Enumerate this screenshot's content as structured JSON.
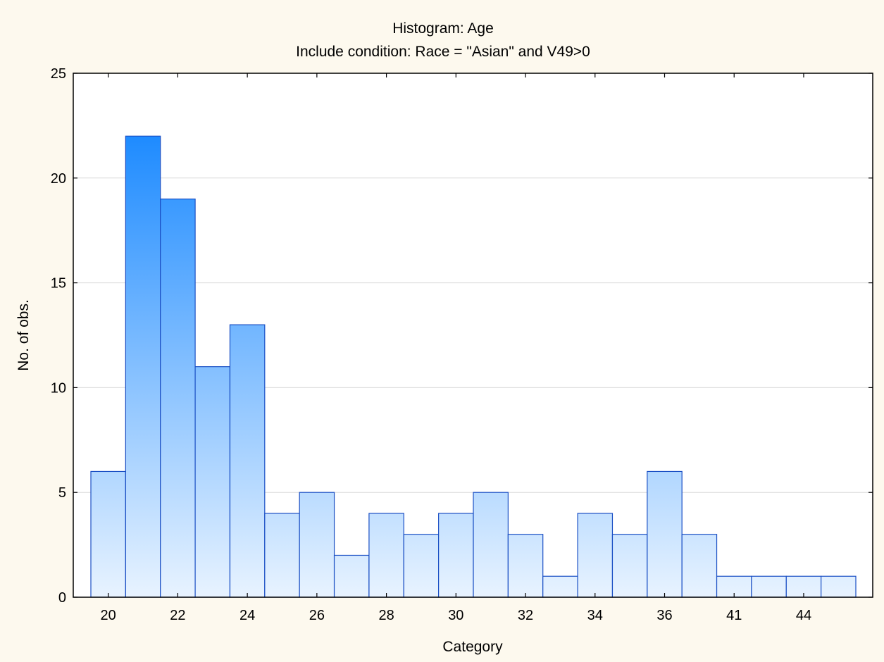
{
  "chart_data": {
    "type": "bar",
    "title": "Histogram: Age",
    "subtitle": "Include condition: Race = \"Asian\" and V49>0",
    "xlabel": "Category",
    "ylabel": "No. of obs.",
    "ylim": [
      0,
      25
    ],
    "yticks": [
      "0",
      "5",
      "10",
      "15",
      "20",
      "25"
    ],
    "grid": true,
    "categories": [
      "20",
      "21",
      "22",
      "23",
      "24",
      "25",
      "26",
      "27",
      "28",
      "29",
      "30",
      "31",
      "32",
      "33",
      "34",
      "35",
      "36",
      "37",
      "41",
      "42",
      "44",
      "45"
    ],
    "values": [
      6,
      22,
      19,
      11,
      13,
      4,
      5,
      2,
      4,
      3,
      4,
      5,
      3,
      1,
      4,
      3,
      6,
      3,
      1,
      1,
      1,
      1
    ],
    "xtick_labels": [
      "20",
      "22",
      "24",
      "26",
      "28",
      "30",
      "32",
      "34",
      "36",
      "41",
      "44"
    ],
    "colors": {
      "bar_top": "#1e8bff",
      "bar_bottom": "#e8f3ff",
      "bar_edge": "#1a4fc4",
      "background": "#fdf9ee",
      "plot_bg": "#ffffff",
      "grid": "#d9d9d9"
    }
  }
}
